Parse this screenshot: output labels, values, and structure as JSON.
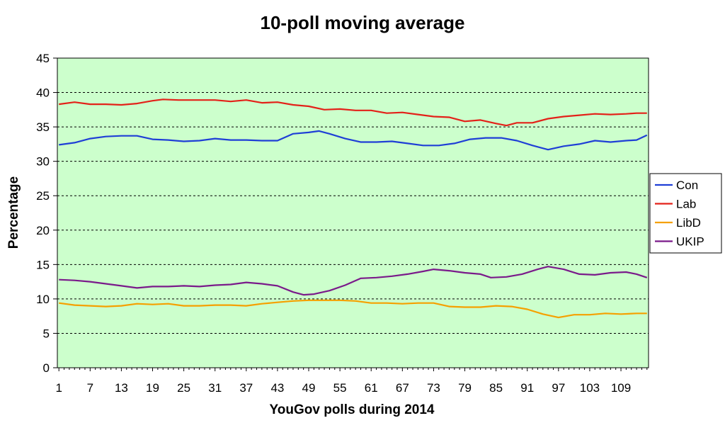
{
  "chart_data": {
    "type": "line",
    "title": "10-poll moving average",
    "xlabel": "YouGov polls during 2014",
    "ylabel": "Percentage",
    "ylim": [
      0,
      45
    ],
    "yticks": [
      0,
      5,
      10,
      15,
      20,
      25,
      30,
      35,
      40,
      45
    ],
    "xlim": [
      1,
      114
    ],
    "xticks": [
      1,
      7,
      13,
      19,
      25,
      31,
      37,
      43,
      49,
      55,
      61,
      67,
      73,
      79,
      85,
      91,
      97,
      103,
      109
    ],
    "grid": "horizontal dashed",
    "legend_position": "right",
    "plot_background": "#ccffcc",
    "series": [
      {
        "name": "Con",
        "color": "#1f3fd6",
        "points": [
          [
            1,
            32.4
          ],
          [
            4,
            32.7
          ],
          [
            7,
            33.3
          ],
          [
            10,
            33.6
          ],
          [
            13,
            33.7
          ],
          [
            16,
            33.7
          ],
          [
            19,
            33.2
          ],
          [
            22,
            33.1
          ],
          [
            25,
            32.9
          ],
          [
            28,
            33.0
          ],
          [
            31,
            33.3
          ],
          [
            34,
            33.1
          ],
          [
            37,
            33.1
          ],
          [
            40,
            33.0
          ],
          [
            43,
            33.0
          ],
          [
            46,
            34.0
          ],
          [
            49,
            34.2
          ],
          [
            51,
            34.4
          ],
          [
            53,
            34.0
          ],
          [
            56,
            33.3
          ],
          [
            59,
            32.8
          ],
          [
            62,
            32.8
          ],
          [
            65,
            32.9
          ],
          [
            68,
            32.6
          ],
          [
            71,
            32.3
          ],
          [
            74,
            32.3
          ],
          [
            77,
            32.6
          ],
          [
            80,
            33.2
          ],
          [
            83,
            33.4
          ],
          [
            86,
            33.4
          ],
          [
            89,
            33.0
          ],
          [
            92,
            32.3
          ],
          [
            95,
            31.7
          ],
          [
            98,
            32.2
          ],
          [
            101,
            32.5
          ],
          [
            104,
            33.0
          ],
          [
            107,
            32.8
          ],
          [
            110,
            33.0
          ],
          [
            112,
            33.1
          ],
          [
            114,
            33.8
          ]
        ]
      },
      {
        "name": "Lab",
        "color": "#e32119",
        "points": [
          [
            1,
            38.3
          ],
          [
            4,
            38.6
          ],
          [
            7,
            38.3
          ],
          [
            10,
            38.3
          ],
          [
            13,
            38.2
          ],
          [
            16,
            38.4
          ],
          [
            19,
            38.8
          ],
          [
            21,
            39.0
          ],
          [
            24,
            38.9
          ],
          [
            28,
            38.9
          ],
          [
            31,
            38.9
          ],
          [
            34,
            38.7
          ],
          [
            37,
            38.9
          ],
          [
            40,
            38.5
          ],
          [
            43,
            38.6
          ],
          [
            46,
            38.2
          ],
          [
            49,
            38.0
          ],
          [
            52,
            37.5
          ],
          [
            55,
            37.6
          ],
          [
            58,
            37.4
          ],
          [
            61,
            37.4
          ],
          [
            64,
            37.0
          ],
          [
            67,
            37.1
          ],
          [
            70,
            36.8
          ],
          [
            73,
            36.5
          ],
          [
            76,
            36.4
          ],
          [
            79,
            35.8
          ],
          [
            82,
            36.0
          ],
          [
            85,
            35.5
          ],
          [
            87,
            35.2
          ],
          [
            89,
            35.6
          ],
          [
            92,
            35.6
          ],
          [
            95,
            36.2
          ],
          [
            98,
            36.5
          ],
          [
            101,
            36.7
          ],
          [
            104,
            36.9
          ],
          [
            107,
            36.8
          ],
          [
            110,
            36.9
          ],
          [
            112,
            37.0
          ],
          [
            114,
            37.0
          ]
        ]
      },
      {
        "name": "LibD",
        "color": "#f5a000",
        "points": [
          [
            1,
            9.4
          ],
          [
            4,
            9.1
          ],
          [
            7,
            9.0
          ],
          [
            10,
            8.9
          ],
          [
            13,
            9.0
          ],
          [
            16,
            9.3
          ],
          [
            19,
            9.2
          ],
          [
            22,
            9.3
          ],
          [
            25,
            9.0
          ],
          [
            28,
            9.0
          ],
          [
            31,
            9.1
          ],
          [
            34,
            9.1
          ],
          [
            37,
            9.0
          ],
          [
            40,
            9.3
          ],
          [
            43,
            9.5
          ],
          [
            46,
            9.7
          ],
          [
            49,
            9.8
          ],
          [
            52,
            9.8
          ],
          [
            55,
            9.8
          ],
          [
            58,
            9.7
          ],
          [
            61,
            9.4
          ],
          [
            64,
            9.4
          ],
          [
            67,
            9.3
          ],
          [
            70,
            9.4
          ],
          [
            73,
            9.4
          ],
          [
            76,
            8.9
          ],
          [
            79,
            8.8
          ],
          [
            82,
            8.8
          ],
          [
            85,
            9.0
          ],
          [
            88,
            8.9
          ],
          [
            91,
            8.5
          ],
          [
            94,
            7.8
          ],
          [
            97,
            7.3
          ],
          [
            100,
            7.7
          ],
          [
            103,
            7.7
          ],
          [
            106,
            7.9
          ],
          [
            109,
            7.8
          ],
          [
            112,
            7.9
          ],
          [
            114,
            7.9
          ]
        ]
      },
      {
        "name": "UKIP",
        "color": "#7a1a8a",
        "points": [
          [
            1,
            12.8
          ],
          [
            4,
            12.7
          ],
          [
            7,
            12.5
          ],
          [
            10,
            12.2
          ],
          [
            13,
            11.9
          ],
          [
            16,
            11.6
          ],
          [
            19,
            11.8
          ],
          [
            22,
            11.8
          ],
          [
            25,
            11.9
          ],
          [
            28,
            11.8
          ],
          [
            31,
            12.0
          ],
          [
            34,
            12.1
          ],
          [
            37,
            12.4
          ],
          [
            40,
            12.2
          ],
          [
            43,
            11.9
          ],
          [
            46,
            11.0
          ],
          [
            48,
            10.6
          ],
          [
            50,
            10.7
          ],
          [
            53,
            11.2
          ],
          [
            56,
            12.0
          ],
          [
            59,
            13.0
          ],
          [
            62,
            13.1
          ],
          [
            65,
            13.3
          ],
          [
            68,
            13.6
          ],
          [
            71,
            14.0
          ],
          [
            73,
            14.3
          ],
          [
            76,
            14.1
          ],
          [
            79,
            13.8
          ],
          [
            82,
            13.6
          ],
          [
            84,
            13.1
          ],
          [
            87,
            13.2
          ],
          [
            90,
            13.6
          ],
          [
            93,
            14.3
          ],
          [
            95,
            14.7
          ],
          [
            98,
            14.3
          ],
          [
            101,
            13.6
          ],
          [
            104,
            13.5
          ],
          [
            107,
            13.8
          ],
          [
            110,
            13.9
          ],
          [
            112,
            13.6
          ],
          [
            114,
            13.1
          ]
        ]
      }
    ]
  }
}
